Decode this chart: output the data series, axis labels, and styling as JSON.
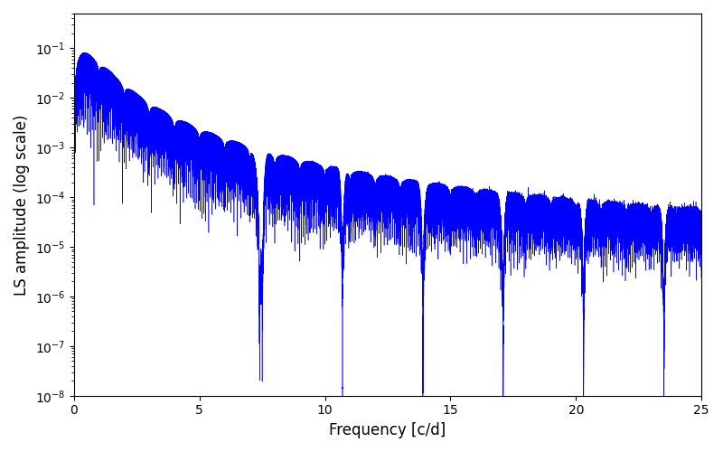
{
  "title": "",
  "xlabel": "Frequency [c/d]",
  "ylabel": "LS amplitude (log scale)",
  "line_color": "#0000ff",
  "line_width": 0.4,
  "xlim": [
    0,
    25
  ],
  "ylim": [
    1e-08,
    0.5
  ],
  "yscale": "log",
  "figsize": [
    8.0,
    5.0
  ],
  "dpi": 100,
  "background_color": "#ffffff",
  "freq_min": 0.001,
  "freq_max": 25.0,
  "n_points": 100000,
  "seed": 77
}
